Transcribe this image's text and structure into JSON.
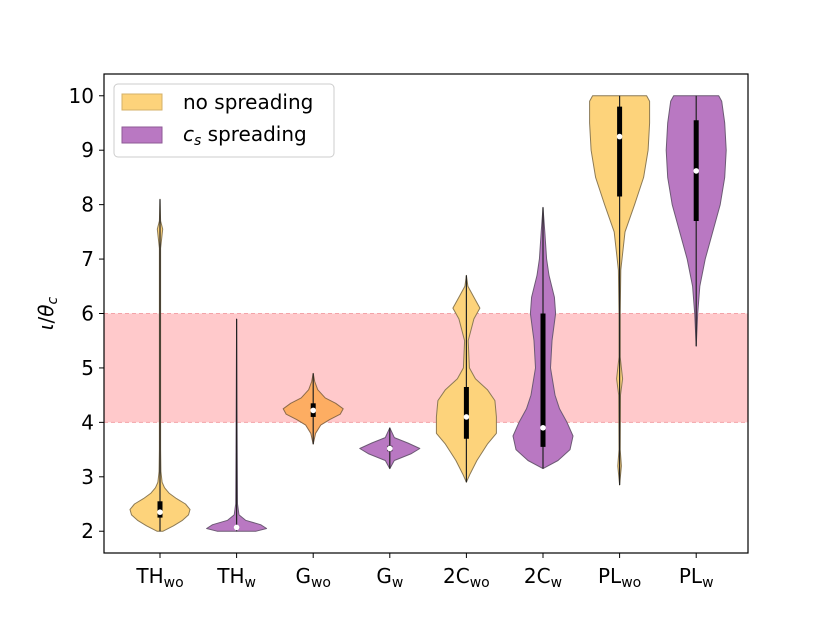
{
  "chart_data": {
    "type": "violin",
    "title": "",
    "xlabel": "",
    "ylabel": "ι/θ_c",
    "ylabel_main": "ι",
    "ylabel_slash": "/",
    "ylabel_theta": "θ",
    "ylabel_sub": "c",
    "ylim": [
      1.6,
      10.4
    ],
    "yticks": [
      2,
      3,
      4,
      5,
      6,
      7,
      8,
      9,
      10
    ],
    "ytick_labels": [
      "2",
      "3",
      "4",
      "5",
      "6",
      "7",
      "8",
      "9",
      "10"
    ],
    "band": {
      "from": 4.0,
      "to": 6.0,
      "color": "#ffc9cb",
      "edge": "#f4a3a8"
    },
    "legend": {
      "position": "upper-left",
      "entries": [
        {
          "label": "no spreading",
          "color": "#fdd37b"
        },
        {
          "label_main": "c",
          "label_sub": "s",
          "label_rest": " spreading",
          "color": "#b978c2"
        }
      ]
    },
    "categories": [
      {
        "base": "TH",
        "sub": "wo",
        "series": "no spreading",
        "fill": "#fdd37b",
        "edge": "#8c7a55",
        "median": 2.35,
        "q1": 2.25,
        "q3": 2.55,
        "min": 2.0,
        "max": 8.1,
        "density": [
          [
            2.0,
            0.1
          ],
          [
            2.1,
            0.45
          ],
          [
            2.2,
            0.75
          ],
          [
            2.3,
            0.95
          ],
          [
            2.4,
            1.0
          ],
          [
            2.5,
            0.85
          ],
          [
            2.6,
            0.55
          ],
          [
            2.7,
            0.3
          ],
          [
            2.8,
            0.15
          ],
          [
            2.9,
            0.07
          ],
          [
            3.1,
            0.03
          ],
          [
            3.5,
            0.02
          ],
          [
            5.0,
            0.02
          ],
          [
            7.2,
            0.02
          ],
          [
            7.55,
            0.09
          ],
          [
            7.7,
            0.02
          ],
          [
            8.1,
            0.0
          ]
        ]
      },
      {
        "base": "TH",
        "sub": "w",
        "series": "c_s spreading",
        "fill": "#b978c2",
        "edge": "#6d5a75",
        "median": 2.07,
        "q1": 2.04,
        "q3": 2.1,
        "min": 2.0,
        "max": 5.9,
        "density": [
          [
            2.0,
            0.65
          ],
          [
            2.05,
            1.0
          ],
          [
            2.12,
            0.8
          ],
          [
            2.2,
            0.3
          ],
          [
            2.3,
            0.08
          ],
          [
            2.5,
            0.03
          ],
          [
            3.5,
            0.02
          ],
          [
            5.9,
            0.0
          ]
        ]
      },
      {
        "base": "G",
        "sub": "wo",
        "series": "no spreading",
        "fill": "#fdad62",
        "edge": "#8c6a4a",
        "median": 4.22,
        "q1": 4.1,
        "q3": 4.35,
        "min": 3.6,
        "max": 4.9,
        "density": [
          [
            3.6,
            0.0
          ],
          [
            3.8,
            0.08
          ],
          [
            3.95,
            0.25
          ],
          [
            4.05,
            0.55
          ],
          [
            4.15,
            0.9
          ],
          [
            4.25,
            1.0
          ],
          [
            4.35,
            0.75
          ],
          [
            4.45,
            0.4
          ],
          [
            4.6,
            0.15
          ],
          [
            4.75,
            0.05
          ],
          [
            4.9,
            0.0
          ]
        ]
      },
      {
        "base": "G",
        "sub": "w",
        "series": "c_s spreading",
        "fill": "#b978c2",
        "edge": "#6d5a75",
        "median": 3.52,
        "q1": 3.47,
        "q3": 3.57,
        "min": 3.15,
        "max": 3.9,
        "density": [
          [
            3.15,
            0.0
          ],
          [
            3.3,
            0.15
          ],
          [
            3.42,
            0.7
          ],
          [
            3.52,
            1.0
          ],
          [
            3.62,
            0.6
          ],
          [
            3.72,
            0.15
          ],
          [
            3.9,
            0.0
          ]
        ]
      },
      {
        "base": "2C",
        "sub": "wo",
        "series": "no spreading",
        "fill": "#fdd37b",
        "edge": "#8c7a55",
        "median": 4.1,
        "q1": 3.7,
        "q3": 4.65,
        "min": 2.9,
        "max": 6.7,
        "density": [
          [
            2.9,
            0.0
          ],
          [
            3.05,
            0.12
          ],
          [
            3.3,
            0.35
          ],
          [
            3.6,
            0.7
          ],
          [
            3.8,
            1.0
          ],
          [
            4.1,
            1.0
          ],
          [
            4.4,
            0.95
          ],
          [
            4.6,
            0.7
          ],
          [
            4.8,
            0.3
          ],
          [
            5.0,
            0.1
          ],
          [
            5.5,
            0.06
          ],
          [
            5.9,
            0.25
          ],
          [
            6.1,
            0.45
          ],
          [
            6.3,
            0.25
          ],
          [
            6.5,
            0.05
          ],
          [
            6.7,
            0.0
          ]
        ]
      },
      {
        "base": "2C",
        "sub": "w",
        "series": "c_s spreading",
        "fill": "#b978c2",
        "edge": "#6d5a75",
        "median": 3.9,
        "q1": 3.55,
        "q3": 6.0,
        "min": 3.15,
        "max": 7.95,
        "density": [
          [
            3.15,
            0.0
          ],
          [
            3.3,
            0.5
          ],
          [
            3.5,
            0.9
          ],
          [
            3.75,
            1.0
          ],
          [
            4.0,
            0.8
          ],
          [
            4.25,
            0.55
          ],
          [
            4.5,
            0.4
          ],
          [
            5.0,
            0.25
          ],
          [
            5.5,
            0.3
          ],
          [
            6.0,
            0.42
          ],
          [
            6.3,
            0.38
          ],
          [
            6.7,
            0.2
          ],
          [
            7.0,
            0.12
          ],
          [
            7.5,
            0.06
          ],
          [
            7.95,
            0.0
          ]
        ]
      },
      {
        "base": "PL",
        "sub": "wo",
        "series": "no spreading",
        "fill": "#fdd37b",
        "edge": "#8c7a55",
        "median": 9.25,
        "q1": 8.15,
        "q3": 9.8,
        "min": 2.85,
        "max": 10.0,
        "density": [
          [
            2.85,
            0.0
          ],
          [
            3.2,
            0.06
          ],
          [
            3.5,
            0.02
          ],
          [
            4.5,
            0.03
          ],
          [
            4.8,
            0.1
          ],
          [
            5.2,
            0.02
          ],
          [
            6.0,
            0.02
          ],
          [
            6.8,
            0.04
          ],
          [
            7.5,
            0.18
          ],
          [
            8.0,
            0.5
          ],
          [
            8.5,
            0.8
          ],
          [
            9.0,
            0.95
          ],
          [
            9.5,
            1.0
          ],
          [
            9.9,
            1.0
          ],
          [
            10.0,
            0.9
          ]
        ]
      },
      {
        "base": "PL",
        "sub": "w",
        "series": "c_s spreading",
        "fill": "#b978c2",
        "edge": "#6d5a75",
        "median": 8.62,
        "q1": 7.7,
        "q3": 9.55,
        "min": 5.4,
        "max": 10.0,
        "density": [
          [
            5.4,
            0.0
          ],
          [
            6.0,
            0.05
          ],
          [
            6.5,
            0.12
          ],
          [
            7.0,
            0.3
          ],
          [
            7.5,
            0.55
          ],
          [
            8.0,
            0.8
          ],
          [
            8.5,
            0.95
          ],
          [
            9.0,
            1.0
          ],
          [
            9.5,
            0.95
          ],
          [
            9.9,
            0.85
          ],
          [
            10.0,
            0.75
          ]
        ]
      }
    ]
  }
}
